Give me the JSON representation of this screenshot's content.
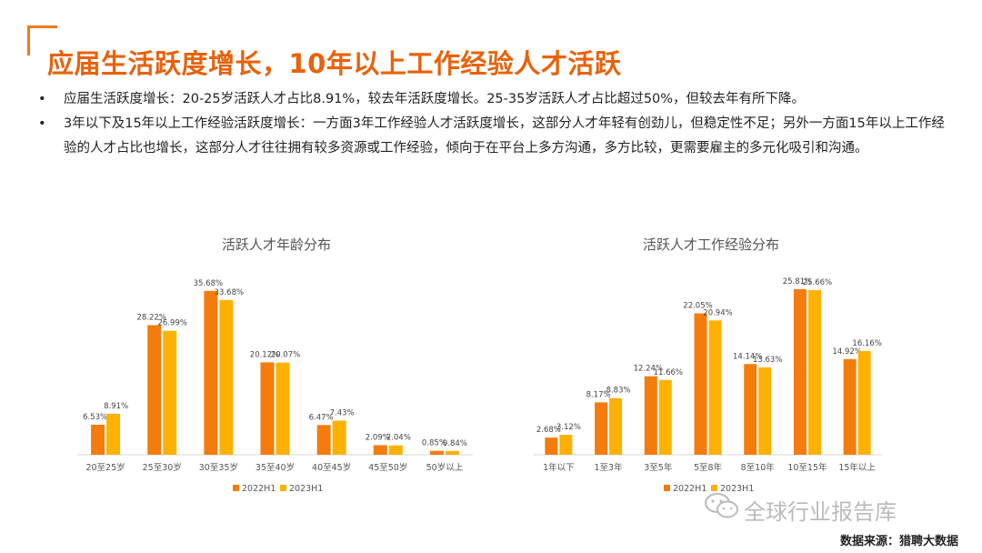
{
  "title": "应届生活跃度增长，10年以上工作经验人才活跃",
  "bullets": [
    "应届生活跃度增长：20-25岁活跃人才占比8.91%，较去年活跃度增长。25-35岁活跃人才占比超过50%，但较去年有所下降。",
    "3年以下及15年以上工作经验活跃度增长：一方面3年工作经验人才活跃度增长，这部分人才年轻有创劲儿，但稳定性不足；另外一方面15年以上工作经验的人才占比也增长，这部分人才往往拥有较多资源或工作经验，倾向于在平台上多方沟通，多方比较，更需要雇主的多元化吸引和沟通。"
  ],
  "bullet_symbol": "•",
  "colors": {
    "accent": "#e8620a",
    "series_2022": "#f47c0c",
    "series_2023": "#ffb100"
  },
  "chart_data": [
    {
      "type": "bar",
      "title": "活跃人才年龄分布",
      "categories": [
        "20至25岁",
        "25至30岁",
        "30至35岁",
        "35至40岁",
        "40至45岁",
        "45至50岁",
        "50岁以上"
      ],
      "series": [
        {
          "name": "2022H1",
          "values": [
            6.53,
            28.22,
            35.68,
            20.12,
            6.47,
            2.09,
            0.85
          ],
          "labels": [
            "6.53%",
            "28.22%",
            "35.68%",
            "20.12%",
            "6.47%",
            "2.09%",
            "0.85%"
          ]
        },
        {
          "name": "2023H1",
          "values": [
            8.91,
            26.99,
            33.68,
            20.07,
            7.43,
            2.04,
            0.84
          ],
          "labels": [
            "8.91%",
            "26.99%",
            "33.68%",
            "20.07%",
            "7.43%",
            "2.04%",
            "0.84%"
          ]
        }
      ],
      "ylim": [
        0,
        40
      ],
      "legend": "bottom"
    },
    {
      "type": "bar",
      "title": "活跃人才工作经验分布",
      "categories": [
        "1年以下",
        "1至3年",
        "3至5年",
        "5至8年",
        "8至10年",
        "10至15年",
        "15年以上"
      ],
      "series": [
        {
          "name": "2022H1",
          "values": [
            2.68,
            8.17,
            12.24,
            22.05,
            14.14,
            25.81,
            14.92
          ],
          "labels": [
            "2.68%",
            "8.17%",
            "12.24%",
            "22.05%",
            "14.14%",
            "25.81%",
            "14.92%"
          ]
        },
        {
          "name": "2023H1",
          "values": [
            3.12,
            8.83,
            11.66,
            20.94,
            13.63,
            25.66,
            16.16
          ],
          "labels": [
            "3.12%",
            "8.83%",
            "11.66%",
            "20.94%",
            "13.63%",
            "25.66%",
            "16.16%"
          ]
        }
      ],
      "ylim": [
        0,
        28.5
      ],
      "legend": "bottom"
    }
  ],
  "watermark": "全球行业报告库",
  "watermark_icon": "wechat-icon",
  "source": "数据来源：猎聘大数据"
}
